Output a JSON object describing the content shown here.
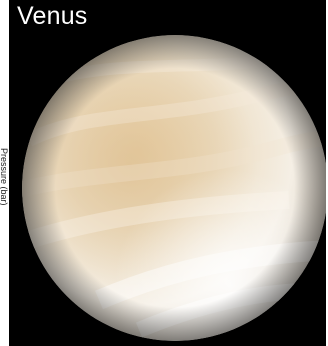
{
  "title": "Venus",
  "axis_label_fragment": "Pressure (bar)",
  "colors": {
    "space": "#000000",
    "planet_light": "#f7efe2",
    "planet_mid": "#e9d6b4",
    "planet_shadow": "#b9a98e",
    "title_text": "#ffffff"
  }
}
